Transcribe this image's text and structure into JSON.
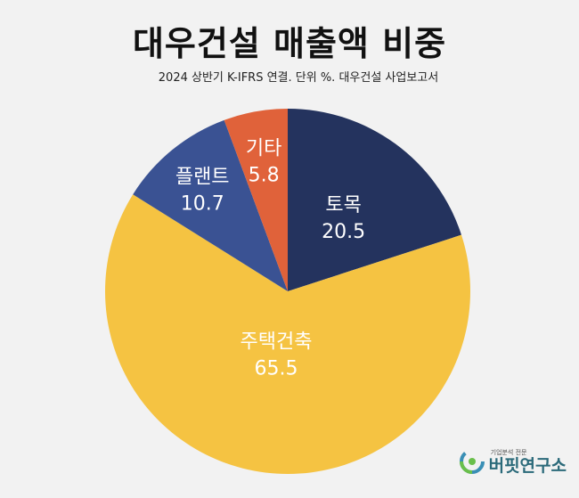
{
  "title": "대우건설 매출액 비중",
  "subtitle": "2024 상반기 K-IFRS 연결. 단위 %. 대우건설 사업보고서",
  "chart_data": {
    "type": "pie",
    "title": "대우건설 매출액 비중",
    "subtitle": "2024 상반기 K-IFRS 연결. 단위 %. 대우건설 사업보고서",
    "unit": "%",
    "start": "12 o'clock, clockwise",
    "slices": [
      {
        "label": "토목",
        "value": 20.5,
        "color": "#24335e"
      },
      {
        "label": "주택건축",
        "value": 65.5,
        "color": "#f5c342"
      },
      {
        "label": "플랜트",
        "value": 10.7,
        "color": "#3a5293"
      },
      {
        "label": "기타",
        "value": 5.8,
        "color": "#e0623a"
      }
    ]
  },
  "logo": {
    "tagline": "기업분석 전문",
    "name": "버핏연구소",
    "icon": "circular-leaf-logo-icon",
    "colors": [
      "#3a8fb5",
      "#6abf4b"
    ]
  }
}
